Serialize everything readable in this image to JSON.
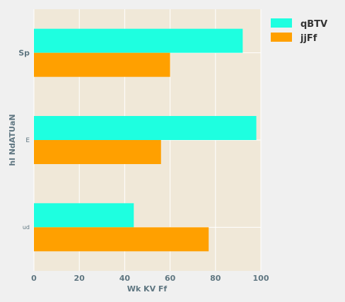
{
  "chart_data": {
    "type": "bar",
    "orientation": "horizontal",
    "categories": [
      "Sp",
      "E",
      "ud"
    ],
    "series": [
      {
        "name": "qBTV",
        "values": [
          92,
          98,
          44
        ],
        "color": "#1effe0"
      },
      {
        "name": "jjFf",
        "values": [
          60,
          56,
          77
        ],
        "color": "#ffa000"
      }
    ],
    "xlabel": "Wk KV Ff",
    "ylabel": "hl NdATUaN",
    "xlim": [
      0,
      100
    ],
    "xticks": [
      "0",
      "20",
      "40",
      "60",
      "80",
      "100"
    ],
    "grid": true,
    "legend": "top-right",
    "plot_background": "#f0e8d8",
    "page_background": "#f0f0f0"
  }
}
